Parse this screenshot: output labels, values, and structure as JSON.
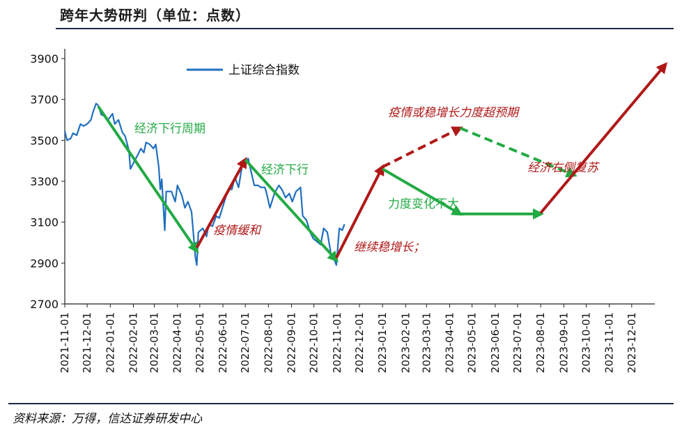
{
  "header": {
    "title": "跨年大势研判（单位：点数）"
  },
  "footer": {
    "source": "资料来源：万得，信达证券研发中心"
  },
  "colors": {
    "index_line": "#1f6fbf",
    "green_arrow": "#22aa44",
    "red_arrow": "#b01818"
  },
  "chart_data": {
    "type": "line",
    "legend": {
      "label": "上证综合指数",
      "placement": "top-left"
    },
    "ylim": [
      2700,
      3900
    ],
    "yticks": [
      "3900",
      "3700",
      "3500",
      "3300",
      "3100",
      "2900",
      "2700"
    ],
    "xlim": [
      "2021-11-01",
      "2024-01-01"
    ],
    "xticks": [
      "2021-11-01",
      "2021-12-01",
      "2022-01-01",
      "2022-02-01",
      "2022-03-01",
      "2022-04-01",
      "2022-05-01",
      "2022-06-01",
      "2022-07-01",
      "2022-08-01",
      "2022-09-01",
      "2022-10-01",
      "2022-11-01",
      "2022-12-01",
      "2023-01-01",
      "2023-02-01",
      "2023-03-01",
      "2023-04-01",
      "2023-05-01",
      "2023-06-01",
      "2023-07-01",
      "2023-08-01",
      "2023-09-01",
      "2023-10-01",
      "2023-11-01",
      "2023-12-01"
    ],
    "series": [
      {
        "name": "上证综合指数",
        "points": [
          [
            "2021-11-01",
            3545
          ],
          [
            "2021-11-04",
            3500
          ],
          [
            "2021-11-09",
            3510
          ],
          [
            "2021-11-12",
            3535
          ],
          [
            "2021-11-17",
            3525
          ],
          [
            "2021-11-22",
            3580
          ],
          [
            "2021-11-26",
            3570
          ],
          [
            "2021-12-01",
            3580
          ],
          [
            "2021-12-06",
            3600
          ],
          [
            "2021-12-09",
            3640
          ],
          [
            "2021-12-13",
            3680
          ],
          [
            "2021-12-16",
            3670
          ],
          [
            "2021-12-20",
            3625
          ],
          [
            "2021-12-24",
            3620
          ],
          [
            "2021-12-29",
            3600
          ],
          [
            "2022-01-04",
            3630
          ],
          [
            "2022-01-07",
            3580
          ],
          [
            "2022-01-12",
            3600
          ],
          [
            "2022-01-17",
            3540
          ],
          [
            "2022-01-21",
            3520
          ],
          [
            "2022-01-26",
            3450
          ],
          [
            "2022-01-28",
            3360
          ],
          [
            "2022-02-07",
            3430
          ],
          [
            "2022-02-11",
            3460
          ],
          [
            "2022-02-15",
            3440
          ],
          [
            "2022-02-18",
            3490
          ],
          [
            "2022-02-23",
            3480
          ],
          [
            "2022-02-28",
            3460
          ],
          [
            "2022-03-03",
            3480
          ],
          [
            "2022-03-07",
            3370
          ],
          [
            "2022-03-09",
            3260
          ],
          [
            "2022-03-11",
            3310
          ],
          [
            "2022-03-15",
            3060
          ],
          [
            "2022-03-17",
            3250
          ],
          [
            "2022-03-21",
            3250
          ],
          [
            "2022-03-24",
            3250
          ],
          [
            "2022-03-29",
            3200
          ],
          [
            "2022-04-01",
            3280
          ],
          [
            "2022-04-07",
            3230
          ],
          [
            "2022-04-11",
            3170
          ],
          [
            "2022-04-15",
            3200
          ],
          [
            "2022-04-20",
            3150
          ],
          [
            "2022-04-25",
            2930
          ],
          [
            "2022-04-27",
            2890
          ],
          [
            "2022-04-29",
            3050
          ],
          [
            "2022-05-05",
            3070
          ],
          [
            "2022-05-10",
            3030
          ],
          [
            "2022-05-13",
            3090
          ],
          [
            "2022-05-18",
            3080
          ],
          [
            "2022-05-23",
            3130
          ],
          [
            "2022-05-27",
            3120
          ],
          [
            "2022-06-02",
            3190
          ],
          [
            "2022-06-08",
            3260
          ],
          [
            "2022-06-13",
            3260
          ],
          [
            "2022-06-17",
            3320
          ],
          [
            "2022-06-22",
            3270
          ],
          [
            "2022-06-27",
            3380
          ],
          [
            "2022-06-30",
            3400
          ],
          [
            "2022-07-05",
            3410
          ],
          [
            "2022-07-08",
            3360
          ],
          [
            "2022-07-13",
            3280
          ],
          [
            "2022-07-18",
            3280
          ],
          [
            "2022-07-22",
            3270
          ],
          [
            "2022-07-27",
            3270
          ],
          [
            "2022-07-29",
            3250
          ],
          [
            "2022-08-03",
            3170
          ],
          [
            "2022-08-09",
            3240
          ],
          [
            "2022-08-15",
            3280
          ],
          [
            "2022-08-19",
            3260
          ],
          [
            "2022-08-24",
            3220
          ],
          [
            "2022-08-29",
            3240
          ],
          [
            "2022-09-02",
            3200
          ],
          [
            "2022-09-07",
            3250
          ],
          [
            "2022-09-13",
            3270
          ],
          [
            "2022-09-16",
            3130
          ],
          [
            "2022-09-21",
            3110
          ],
          [
            "2022-09-26",
            3050
          ],
          [
            "2022-09-30",
            3020
          ],
          [
            "2022-10-10",
            2990
          ],
          [
            "2022-10-14",
            3070
          ],
          [
            "2022-10-19",
            3050
          ],
          [
            "2022-10-24",
            2940
          ],
          [
            "2022-10-28",
            2920
          ],
          [
            "2022-10-31",
            2890
          ],
          [
            "2022-11-04",
            3070
          ],
          [
            "2022-11-08",
            3060
          ],
          [
            "2022-11-11",
            3090
          ]
        ]
      }
    ],
    "annotations": [
      {
        "text": "经济下行周期",
        "color": "green"
      },
      {
        "text": "疫情缓和",
        "color": "red"
      },
      {
        "text": "经济下行",
        "color": "green"
      },
      {
        "text": "继续稳增长；",
        "color": "red"
      },
      {
        "text": "疫情或稳增长力度超预期",
        "color": "red"
      },
      {
        "text": "力度变化不大",
        "color": "green"
      },
      {
        "text": "经济右侧复苏",
        "color": "red"
      }
    ],
    "arrows": [
      {
        "kind": "green",
        "style": "solid",
        "from": [
          "2021-12-16",
          3665
        ],
        "to": [
          "2022-04-27",
          2960
        ]
      },
      {
        "kind": "red",
        "style": "solid",
        "from": [
          "2022-04-27",
          2975
        ],
        "to": [
          "2022-07-01",
          3405
        ]
      },
      {
        "kind": "green",
        "style": "solid",
        "from": [
          "2022-07-01",
          3405
        ],
        "to": [
          "2022-10-31",
          2915
        ]
      },
      {
        "kind": "red",
        "style": "solid",
        "from": [
          "2022-10-31",
          2925
        ],
        "to": [
          "2023-01-01",
          3370
        ]
      },
      {
        "kind": "red",
        "style": "dashed",
        "from": [
          "2023-01-01",
          3370
        ],
        "to": [
          "2023-04-15",
          3560
        ]
      },
      {
        "kind": "green",
        "style": "dashed",
        "from": [
          "2023-04-15",
          3560
        ],
        "to": [
          "2023-09-15",
          3330
        ]
      },
      {
        "kind": "green",
        "style": "solid",
        "from": [
          "2023-01-01",
          3360
        ],
        "to": [
          "2023-04-15",
          3140
        ]
      },
      {
        "kind": "green",
        "style": "solid",
        "from": [
          "2023-04-15",
          3140
        ],
        "to": [
          "2023-08-01",
          3140
        ]
      },
      {
        "kind": "red",
        "style": "solid",
        "from": [
          "2023-08-01",
          3145
        ],
        "to": [
          "2024-01-15",
          3870
        ]
      }
    ]
  }
}
